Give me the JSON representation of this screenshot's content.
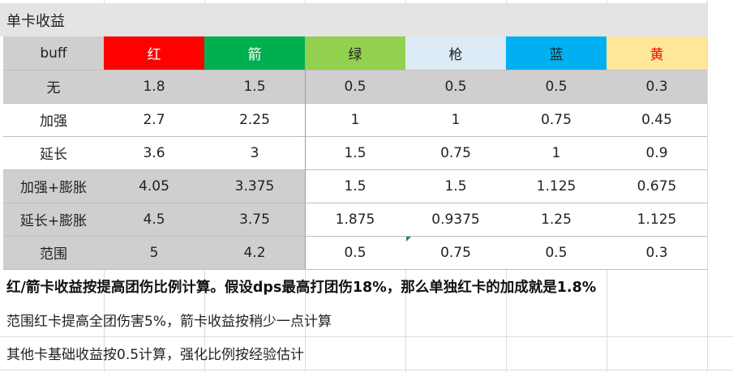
{
  "title": "单卡收益",
  "headers": [
    {
      "label": "buff",
      "bg": "#d0cece",
      "color": "#222222"
    },
    {
      "label": "红",
      "bg": "#ff0000",
      "color": "#ffffff"
    },
    {
      "label": "箭",
      "bg": "#00b050",
      "color": "#ffffff"
    },
    {
      "label": "绿",
      "bg": "#92d050",
      "color": "#222222"
    },
    {
      "label": "枪",
      "bg": "#ddebf7",
      "color": "#222222"
    },
    {
      "label": "蓝",
      "bg": "#00b0f0",
      "color": "#222222"
    },
    {
      "label": "黄",
      "bg": "#ffe699",
      "color": "#ff0000"
    }
  ],
  "rows": [
    {
      "buff": "无",
      "values": [
        "1.8",
        "1.5",
        "0.5",
        "0.5",
        "0.5",
        "0.3"
      ]
    },
    {
      "buff": "加强",
      "values": [
        "2.7",
        "2.25",
        "1",
        "1",
        "0.75",
        "0.45"
      ]
    },
    {
      "buff": "延长",
      "values": [
        "3.6",
        "3",
        "1.5",
        "0.75",
        "1",
        "0.9"
      ]
    },
    {
      "buff": "加强+膨胀",
      "values": [
        "4.05",
        "3.375",
        "1.5",
        "1.5",
        "1.125",
        "0.675"
      ]
    },
    {
      "buff": "延长+膨胀",
      "values": [
        "4.5",
        "3.75",
        "1.875",
        "0.9375",
        "1.25",
        "1.125"
      ]
    },
    {
      "buff": "范围",
      "values": [
        "5",
        "4.2",
        "0.5",
        "0.75",
        "0.5",
        "0.3"
      ]
    }
  ],
  "notes": [
    "红/箭卡收益按提高团伤比例计算。假设dps最高打团伤18%，那么单独红卡的加成就是1.8%",
    "范围红卡提高全团伤害5%，箭卡收益按稍少一点计算",
    "其他卡基础收益按0.5计算，强化比例按经验估计"
  ]
}
